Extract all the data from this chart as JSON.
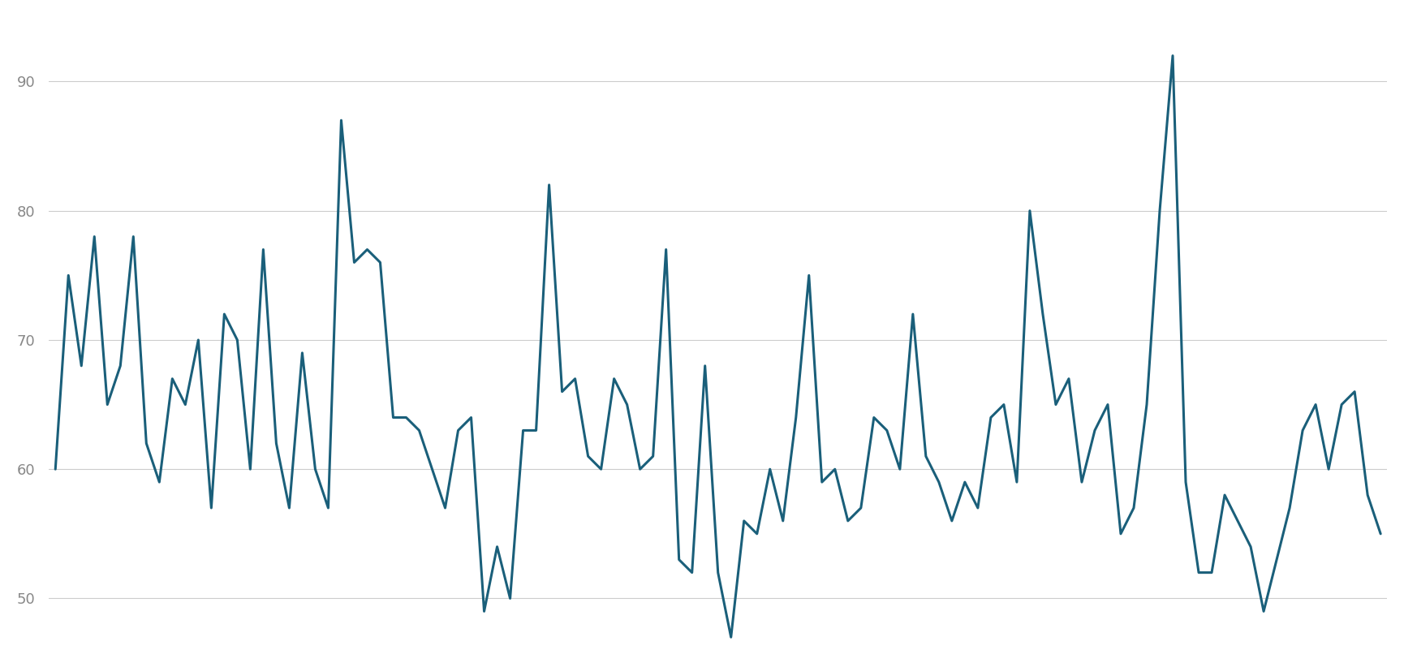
{
  "line_color": "#1a5f7a",
  "background_color": "#ffffff",
  "grid_color": "#cccccc",
  "ylim": [
    46,
    95
  ],
  "yticks": [
    50,
    60,
    70,
    80,
    90
  ],
  "line_width": 2.2,
  "values": [
    60,
    75,
    68,
    78,
    65,
    68,
    78,
    62,
    59,
    67,
    65,
    70,
    57,
    72,
    70,
    60,
    77,
    62,
    57,
    69,
    60,
    57,
    87,
    76,
    77,
    76,
    64,
    64,
    63,
    60,
    57,
    63,
    64,
    49,
    54,
    50,
    63,
    63,
    82,
    66,
    67,
    61,
    60,
    67,
    65,
    60,
    61,
    77,
    53,
    52,
    68,
    52,
    47,
    56,
    55,
    60,
    56,
    64,
    75,
    59,
    60,
    56,
    57,
    64,
    63,
    60,
    72,
    61,
    59,
    56,
    59,
    57,
    64,
    65,
    59,
    80,
    72,
    65,
    67,
    59,
    63,
    65,
    55,
    57,
    65,
    80,
    92,
    59,
    52,
    52,
    58,
    56,
    54,
    49,
    53,
    57,
    63,
    65,
    60,
    65,
    66,
    58,
    55
  ]
}
